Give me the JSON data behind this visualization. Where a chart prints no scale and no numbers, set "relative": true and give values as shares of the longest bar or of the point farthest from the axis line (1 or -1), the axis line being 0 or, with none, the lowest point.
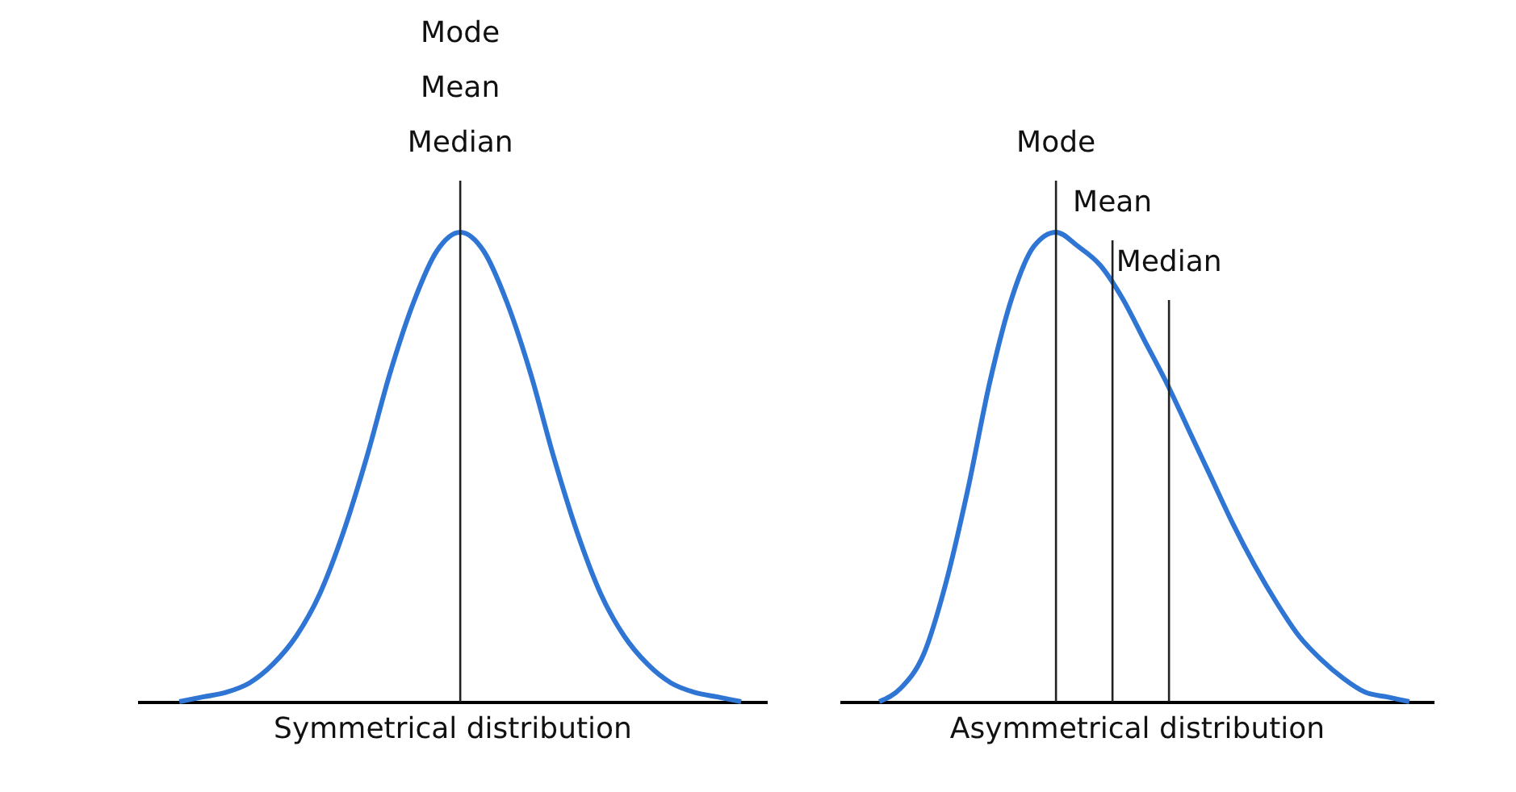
{
  "chart_data": [
    {
      "type": "line",
      "relative": true,
      "tick_labels": false,
      "xlabel": "Symmetrical distribution",
      "categories": [
        null,
        null,
        null,
        null,
        null,
        null,
        null,
        null,
        null,
        null,
        null,
        null,
        null,
        null,
        null,
        null,
        null,
        null,
        null,
        null,
        null,
        null,
        null,
        null,
        null
      ],
      "series": [
        {
          "color": "#2e75d4",
          "values": [
            0,
            0.01,
            0.02,
            0.04,
            0.08,
            0.14,
            0.23,
            0.36,
            0.52,
            0.7,
            0.85,
            0.96,
            1,
            0.96,
            0.85,
            0.7,
            0.52,
            0.36,
            0.23,
            0.14,
            0.08,
            0.04,
            0.02,
            0.01,
            0
          ]
        }
      ],
      "annotations": [
        "Mode",
        "Mean",
        "Median"
      ]
    },
    {
      "type": "line",
      "relative": true,
      "tick_labels": false,
      "xlabel": "Asymmetrical distribution",
      "categories": [
        null,
        null,
        null,
        null,
        null,
        null,
        null,
        null,
        null,
        null,
        null,
        null,
        null,
        null,
        null,
        null,
        null,
        null,
        null,
        null,
        null,
        null,
        null,
        null,
        null
      ],
      "series": [
        {
          "color": "#2e75d4",
          "values": [
            0,
            0.03,
            0.1,
            0.25,
            0.45,
            0.68,
            0.86,
            0.97,
            1,
            0.97,
            0.93,
            0.86,
            0.77,
            0.68,
            0.58,
            0.48,
            0.38,
            0.29,
            0.21,
            0.14,
            0.09,
            0.05,
            0.02,
            0.01,
            0
          ]
        }
      ],
      "annotations": [
        "Mode",
        "Mean",
        "Median"
      ]
    }
  ]
}
